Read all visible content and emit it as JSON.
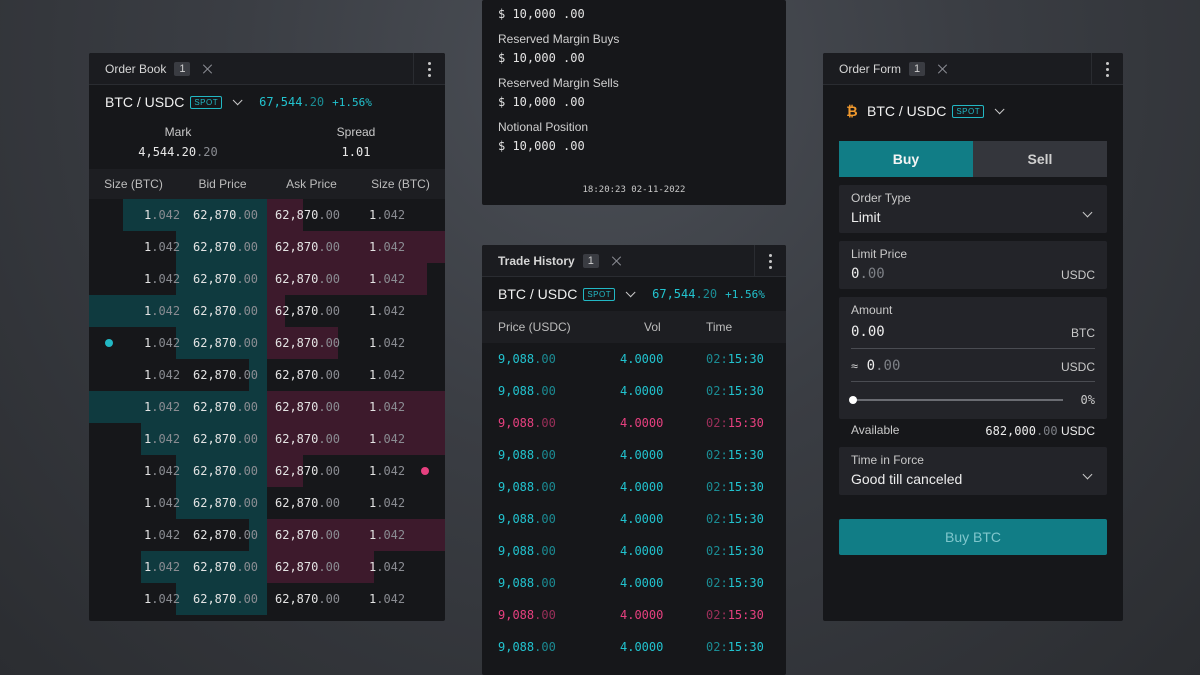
{
  "order_book": {
    "title": "Order  Book",
    "badge": "1",
    "pair": "BTC / USDC",
    "spot": "SPOT",
    "price_main": "67,544",
    "price_dec": ".20",
    "change": "+1.56%",
    "mark_label": "Mark",
    "mark_main": "4,544.20",
    "mark_dec": ".20",
    "spread_label": "Spread",
    "spread_value": "1.01",
    "headers": [
      "Size (BTC)",
      "Bid Price",
      "Ask Price",
      "Size (BTC)"
    ],
    "rows": [
      {
        "bid_size_a": "1",
        "bid_size_b": ".042",
        "bid_price_a": "62,870",
        "bid_price_b": ".00",
        "ask_price_a": "62,870",
        "ask_price_b": ".00",
        "ask_size_a": "1",
        "ask_size_b": ".042"
      },
      {
        "bid_size_a": "1",
        "bid_size_b": ".042",
        "bid_price_a": "62,870",
        "bid_price_b": ".00",
        "ask_price_a": "62,870",
        "ask_price_b": ".00",
        "ask_size_a": "1",
        "ask_size_b": ".042"
      },
      {
        "bid_size_a": "1",
        "bid_size_b": ".042",
        "bid_price_a": "62,870",
        "bid_price_b": ".00",
        "ask_price_a": "62,870",
        "ask_price_b": ".00",
        "ask_size_a": "1",
        "ask_size_b": ".042"
      },
      {
        "bid_size_a": "1",
        "bid_size_b": ".042",
        "bid_price_a": "62,870",
        "bid_price_b": ".00",
        "ask_price_a": "62,870",
        "ask_price_b": ".00",
        "ask_size_a": "1",
        "ask_size_b": ".042"
      },
      {
        "bid_size_a": "1",
        "bid_size_b": ".042",
        "bid_price_a": "62,870",
        "bid_price_b": ".00",
        "ask_price_a": "62,870",
        "ask_price_b": ".00",
        "ask_size_a": "1",
        "ask_size_b": ".042"
      },
      {
        "bid_size_a": "1",
        "bid_size_b": ".042",
        "bid_price_a": "62,870",
        "bid_price_b": ".00",
        "ask_price_a": "62,870",
        "ask_price_b": ".00",
        "ask_size_a": "1",
        "ask_size_b": ".042"
      },
      {
        "bid_size_a": "1",
        "bid_size_b": ".042",
        "bid_price_a": "62,870",
        "bid_price_b": ".00",
        "ask_price_a": "62,870",
        "ask_price_b": ".00",
        "ask_size_a": "1",
        "ask_size_b": ".042"
      },
      {
        "bid_size_a": "1",
        "bid_size_b": ".042",
        "bid_price_a": "62,870",
        "bid_price_b": ".00",
        "ask_price_a": "62,870",
        "ask_price_b": ".00",
        "ask_size_a": "1",
        "ask_size_b": ".042"
      },
      {
        "bid_size_a": "1",
        "bid_size_b": ".042",
        "bid_price_a": "62,870",
        "bid_price_b": ".00",
        "ask_price_a": "62,870",
        "ask_price_b": ".00",
        "ask_size_a": "1",
        "ask_size_b": ".042"
      },
      {
        "bid_size_a": "1",
        "bid_size_b": ".042",
        "bid_price_a": "62,870",
        "bid_price_b": ".00",
        "ask_price_a": "62,870",
        "ask_price_b": ".00",
        "ask_size_a": "1",
        "ask_size_b": ".042"
      },
      {
        "bid_size_a": "1",
        "bid_size_b": ".042",
        "bid_price_a": "62,870",
        "bid_price_b": ".00",
        "ask_price_a": "62,870",
        "ask_price_b": ".00",
        "ask_size_a": "1",
        "ask_size_b": ".042"
      },
      {
        "bid_size_a": "1",
        "bid_size_b": ".042",
        "bid_price_a": "62,870",
        "bid_price_b": ".00",
        "ask_price_a": "62,870",
        "ask_price_b": ".00",
        "ask_size_a": "1",
        "ask_size_b": ".042"
      },
      {
        "bid_size_a": "1",
        "bid_size_b": ".042",
        "bid_price_a": "62,870",
        "bid_price_b": ".00",
        "ask_price_a": "62,870",
        "ask_price_b": ".00",
        "ask_size_a": "1",
        "ask_size_b": ".042"
      }
    ],
    "bid_depth": [
      0.81,
      0.51,
      0.51,
      1.0,
      0.51,
      0.1,
      1.0,
      0.71,
      0.51,
      0.51,
      0.1,
      0.71,
      0.51
    ],
    "ask_depth": [
      0.2,
      1.0,
      0.9,
      0.1,
      0.4,
      0.0,
      1.0,
      1.0,
      0.2,
      0.0,
      1.0,
      0.6,
      0.0
    ],
    "colors": {
      "bid": "#0f3a3f",
      "ask": "#3d1a2c",
      "bid_dot": "#22b8c4",
      "ask_dot": "#e6407f"
    }
  },
  "account": {
    "top_value": "$ 10,000 .00",
    "items": [
      {
        "label": "Reserved Margin Buys",
        "value": "$ 10,000 .00"
      },
      {
        "label": "Reserved Margin Sells",
        "value": "$ 10,000 .00"
      },
      {
        "label": "Notional Position",
        "value": "$ 10,000 .00"
      }
    ],
    "timestamp": "18:20:23 02-11-2022"
  },
  "trade_history": {
    "title": "Trade History",
    "badge": "1",
    "pair": "BTC / USDC",
    "spot": "SPOT",
    "price_main": "67,544",
    "price_dec": ".20",
    "change": "+1.56%",
    "headers": [
      "Price (USDC)",
      "Vol",
      "Time"
    ],
    "rows": [
      {
        "side": "buy",
        "price_a": "9,088",
        "price_b": ".00",
        "vol": "4.0000",
        "time_a": "02:",
        "time_b": "15:30"
      },
      {
        "side": "buy",
        "price_a": "9,088",
        "price_b": ".00",
        "vol": "4.0000",
        "time_a": "02:",
        "time_b": "15:30"
      },
      {
        "side": "sell",
        "price_a": "9,088",
        "price_b": ".00",
        "vol": "4.0000",
        "time_a": "02:",
        "time_b": "15:30"
      },
      {
        "side": "buy",
        "price_a": "9,088",
        "price_b": ".00",
        "vol": "4.0000",
        "time_a": "02:",
        "time_b": "15:30"
      },
      {
        "side": "buy",
        "price_a": "9,088",
        "price_b": ".00",
        "vol": "4.0000",
        "time_a": "02:",
        "time_b": "15:30"
      },
      {
        "side": "buy",
        "price_a": "9,088",
        "price_b": ".00",
        "vol": "4.0000",
        "time_a": "02:",
        "time_b": "15:30"
      },
      {
        "side": "buy",
        "price_a": "9,088",
        "price_b": ".00",
        "vol": "4.0000",
        "time_a": "02:",
        "time_b": "15:30"
      },
      {
        "side": "buy",
        "price_a": "9,088",
        "price_b": ".00",
        "vol": "4.0000",
        "time_a": "02:",
        "time_b": "15:30"
      },
      {
        "side": "sell",
        "price_a": "9,088",
        "price_b": ".00",
        "vol": "4.0000",
        "time_a": "02:",
        "time_b": "15:30"
      },
      {
        "side": "buy",
        "price_a": "9,088",
        "price_b": ".00",
        "vol": "4.0000",
        "time_a": "02:",
        "time_b": "15:30"
      }
    ]
  },
  "order_form": {
    "title": "Order Form",
    "badge": "1",
    "pair": "BTC / USDC",
    "spot": "SPOT",
    "buy_tab": "Buy",
    "sell_tab": "Sell",
    "order_type_label": "Order Type",
    "order_type_value": "Limit",
    "limit_price_label": "Limit Price",
    "limit_price_main": "0",
    "limit_price_dec": ".00",
    "limit_price_unit": "USDC",
    "amount_label": "Amount",
    "amount_value": "0.00",
    "amount_unit": "BTC",
    "approx_symbol": "≈",
    "approx_main": "0",
    "approx_dec": ".00",
    "approx_unit": "USDC",
    "slider_percent": "0%",
    "slider_fraction": 0,
    "available_label": "Available",
    "available_main": "682,000",
    "available_dec": ".00",
    "available_unit": "USDC",
    "tif_label": "Time in Force",
    "tif_value": "Good till canceled",
    "submit_label": "Buy BTC",
    "btc_icon": "bitcoin-icon"
  }
}
